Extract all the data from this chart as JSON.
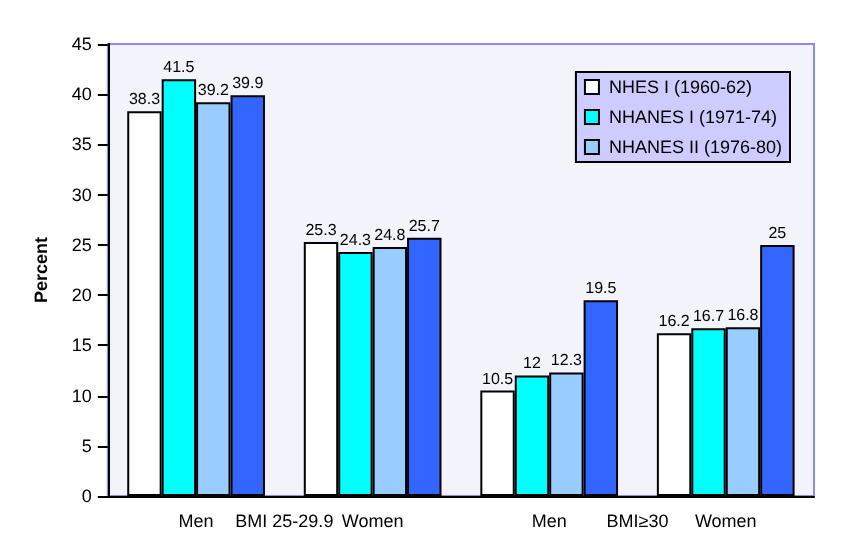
{
  "chart_data": {
    "type": "bar",
    "ylabel": "Percent",
    "categories": [
      "Men",
      "Women",
      "Men",
      "Women"
    ],
    "series": [
      {
        "name": "NHES I (1960-62)",
        "color": "#ffffff",
        "values": [
          38.3,
          25.3,
          10.5,
          16.2
        ]
      },
      {
        "name": "NHANES I (1971-74)",
        "color": "#00ffff",
        "values": [
          41.5,
          24.3,
          12,
          16.7
        ]
      },
      {
        "name": "NHANES II (1976-80)",
        "color": "#99ccff",
        "values": [
          39.2,
          24.8,
          12.3,
          16.8
        ]
      },
      {
        "color": "#3366ff",
        "values": [
          39.9,
          25.7,
          19.5,
          25
        ]
      }
    ],
    "ylim": [
      0,
      45
    ],
    "yticks": [
      0,
      5,
      10,
      15,
      20,
      25,
      30,
      35,
      40,
      45
    ],
    "data_labels": true,
    "legend": "top right",
    "grid": false,
    "annotations": [
      "BMI 25-29.9",
      "BMI≥30"
    ]
  }
}
